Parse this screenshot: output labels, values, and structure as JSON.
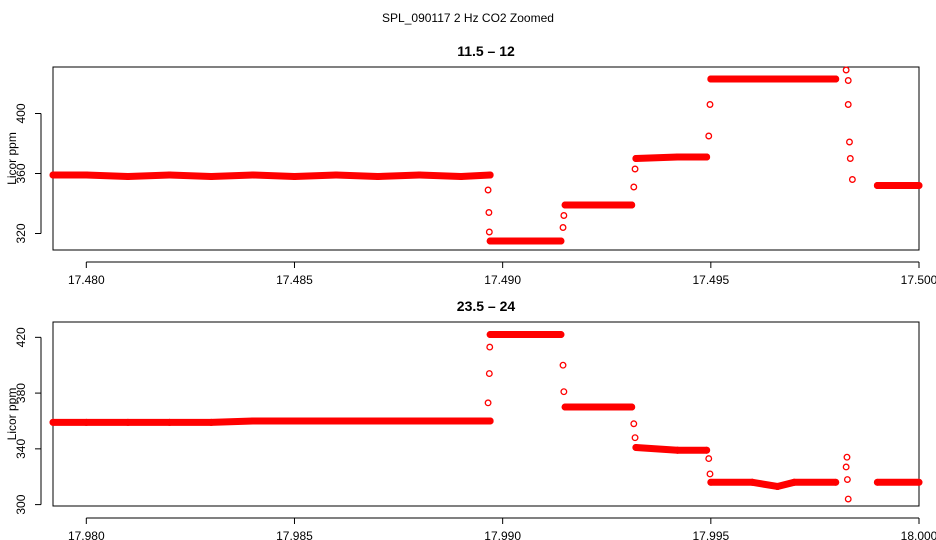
{
  "figure_title": "SPL_090117  2 Hz CO2 Zoomed",
  "chart_data": [
    {
      "type": "scatter",
      "title": "11.5 – 12",
      "xlabel": "",
      "ylabel": "Licor ppm",
      "xlim": [
        17.4792,
        17.5
      ],
      "ylim": [
        309,
        431
      ],
      "xticks": [
        17.48,
        17.485,
        17.49,
        17.495,
        17.5
      ],
      "xtick_labels": [
        "17.480",
        "17.485",
        "17.490",
        "17.495",
        "17.500"
      ],
      "yticks": [
        320,
        360,
        400
      ],
      "ytick_labels": [
        "320",
        "360",
        "400"
      ],
      "grid": false,
      "marker": "open-circle",
      "color": "#ff0000",
      "points": [
        [
          17.4792,
          359
        ],
        [
          17.48,
          359
        ],
        [
          17.481,
          358
        ],
        [
          17.482,
          359
        ],
        [
          17.483,
          358
        ],
        [
          17.484,
          359
        ],
        [
          17.485,
          358
        ],
        [
          17.486,
          359
        ],
        [
          17.487,
          358
        ],
        [
          17.488,
          359
        ],
        [
          17.489,
          358
        ],
        [
          17.4897,
          359
        ],
        [
          17.48965,
          349
        ],
        [
          17.48967,
          334
        ],
        [
          17.48968,
          321
        ],
        [
          17.4897,
          315
        ],
        [
          17.4905,
          315
        ],
        [
          17.4914,
          315
        ],
        [
          17.49145,
          324
        ],
        [
          17.49147,
          332
        ],
        [
          17.4915,
          339
        ],
        [
          17.4925,
          339
        ],
        [
          17.4931,
          339
        ],
        [
          17.49315,
          351
        ],
        [
          17.49318,
          363
        ],
        [
          17.4932,
          370
        ],
        [
          17.4942,
          371
        ],
        [
          17.4949,
          371
        ],
        [
          17.49495,
          385
        ],
        [
          17.49498,
          406
        ],
        [
          17.495,
          423
        ],
        [
          17.496,
          423
        ],
        [
          17.497,
          423
        ],
        [
          17.498,
          423
        ],
        [
          17.4983,
          422
        ],
        [
          17.49825,
          429
        ],
        [
          17.4983,
          406
        ],
        [
          17.49833,
          381
        ],
        [
          17.49835,
          370
        ],
        [
          17.4984,
          356
        ],
        [
          17.499,
          352
        ],
        [
          17.5,
          352
        ]
      ]
    },
    {
      "type": "scatter",
      "title": "23.5 – 24",
      "xlabel": "",
      "ylabel": "Licor ppm",
      "xlim": [
        17.9792,
        18.0
      ],
      "ylim": [
        299,
        431
      ],
      "xticks": [
        17.98,
        17.985,
        17.99,
        17.995,
        18.0
      ],
      "xtick_labels": [
        "17.980",
        "17.985",
        "17.990",
        "17.995",
        "18.000"
      ],
      "yticks": [
        300,
        340,
        380,
        420
      ],
      "ytick_labels": [
        "300",
        "340",
        "380",
        "420"
      ],
      "grid": false,
      "marker": "open-circle",
      "color": "#ff0000",
      "points": [
        [
          17.9792,
          359
        ],
        [
          17.98,
          359
        ],
        [
          17.981,
          359
        ],
        [
          17.982,
          359
        ],
        [
          17.983,
          359
        ],
        [
          17.984,
          360
        ],
        [
          17.985,
          360
        ],
        [
          17.986,
          360
        ],
        [
          17.987,
          360
        ],
        [
          17.988,
          360
        ],
        [
          17.989,
          360
        ],
        [
          17.9897,
          360
        ],
        [
          17.98965,
          373
        ],
        [
          17.98968,
          394
        ],
        [
          17.98969,
          413
        ],
        [
          17.9897,
          422
        ],
        [
          17.9905,
          422
        ],
        [
          17.9914,
          422
        ],
        [
          17.99145,
          400
        ],
        [
          17.99147,
          381
        ],
        [
          17.9915,
          370
        ],
        [
          17.9925,
          370
        ],
        [
          17.9931,
          370
        ],
        [
          17.99315,
          358
        ],
        [
          17.99318,
          348
        ],
        [
          17.9932,
          341
        ],
        [
          17.9942,
          339
        ],
        [
          17.9949,
          339
        ],
        [
          17.99495,
          333
        ],
        [
          17.99498,
          322
        ],
        [
          17.995,
          316
        ],
        [
          17.996,
          316
        ],
        [
          17.9966,
          313
        ],
        [
          17.997,
          316
        ],
        [
          17.998,
          316
        ],
        [
          17.99825,
          327
        ],
        [
          17.99827,
          334
        ],
        [
          17.99828,
          318
        ],
        [
          17.9983,
          304
        ],
        [
          17.999,
          316
        ],
        [
          18.0,
          316
        ]
      ]
    }
  ]
}
